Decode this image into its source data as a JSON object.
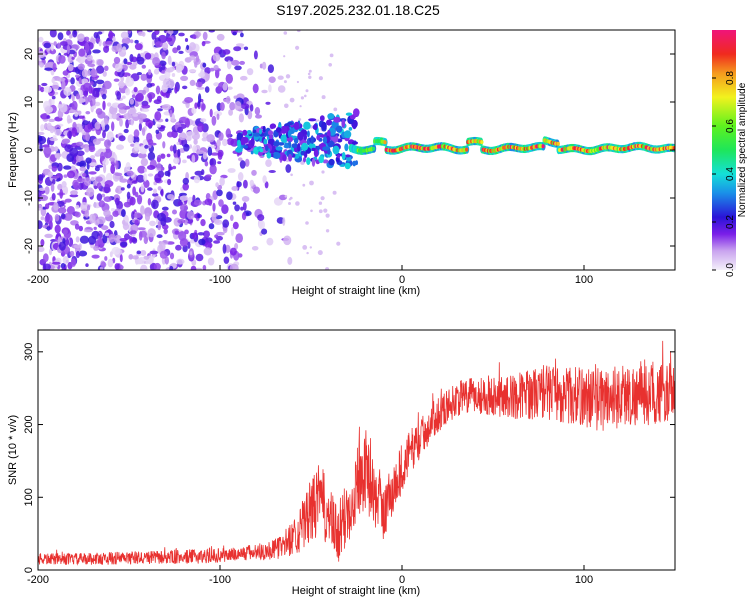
{
  "title": "S197.2025.232.01.18.C25",
  "chart_data": [
    {
      "type": "heatmap",
      "name": "spectrogram",
      "xlabel": "Height of straight line (km)",
      "ylabel": "Frequency (Hz)",
      "xlim": [
        -200,
        150
      ],
      "ylim": [
        -25,
        25
      ],
      "x_ticks": [
        -200,
        -100,
        0,
        100
      ],
      "x_tick_labels": [
        "-200",
        "-100",
        "0",
        "100"
      ],
      "y_ticks": [
        -20,
        -10,
        0,
        10,
        20
      ],
      "y_tick_labels": [
        "-20",
        "-10",
        "0",
        "10",
        "20"
      ],
      "description_series": [
        {
          "name": "noise scatter region",
          "x_range": [
            -200,
            -60
          ],
          "y_range": [
            -25,
            25
          ],
          "amplitude_range": [
            0.0,
            0.15
          ]
        },
        {
          "name": "transition band",
          "x_range": [
            -90,
            -25
          ],
          "y_range": [
            -5,
            5
          ],
          "amplitude_range": [
            0.1,
            0.35
          ]
        },
        {
          "name": "signal line",
          "x_range": [
            -25,
            150
          ],
          "y_center": 0,
          "amplitude_range": [
            0.4,
            1.0
          ]
        }
      ],
      "colorbar": {
        "label": "Normalized spectral amplitude",
        "range": [
          0.0,
          1.0
        ],
        "ticks": [
          0.0,
          0.2,
          0.4,
          0.6,
          0.8
        ],
        "tick_labels": [
          "0.0",
          "0.2",
          "0.4",
          "0.6",
          "0.8"
        ]
      }
    },
    {
      "type": "line",
      "name": "snr",
      "xlabel": "Height of straight line (km)",
      "ylabel": "SNR (10 * v/v)",
      "xlim": [
        -200,
        150
      ],
      "ylim": [
        0,
        330
      ],
      "x_ticks": [
        -200,
        -100,
        0,
        100
      ],
      "x_tick_labels": [
        "-200",
        "-100",
        "0",
        "100"
      ],
      "y_ticks": [
        0,
        100,
        200,
        300
      ],
      "y_tick_labels": [
        "0",
        "100",
        "200",
        "300"
      ],
      "color": "#e8312f",
      "series": [
        {
          "name": "SNR",
          "x": [
            -200,
            -180,
            -160,
            -140,
            -120,
            -100,
            -90,
            -80,
            -70,
            -65,
            -60,
            -55,
            -50,
            -45,
            -40,
            -35,
            -30,
            -25,
            -20,
            -15,
            -10,
            -5,
            0,
            5,
            10,
            15,
            20,
            25,
            30,
            40,
            50,
            60,
            70,
            80,
            90,
            100,
            110,
            120,
            130,
            140,
            150
          ],
          "y": [
            15,
            15,
            16,
            17,
            18,
            20,
            22,
            25,
            28,
            35,
            45,
            60,
            80,
            100,
            70,
            45,
            80,
            120,
            140,
            100,
            80,
            110,
            140,
            165,
            180,
            200,
            215,
            225,
            235,
            240,
            240,
            238,
            242,
            245,
            240,
            238,
            235,
            240,
            240,
            242,
            245
          ],
          "noise_amplitude": [
            8,
            8,
            9,
            9,
            10,
            10,
            10,
            12,
            14,
            18,
            25,
            35,
            45,
            50,
            45,
            40,
            50,
            55,
            55,
            45,
            40,
            40,
            35,
            30,
            28,
            26,
            25,
            24,
            24,
            26,
            28,
            30,
            35,
            38,
            40,
            42,
            45,
            45,
            42,
            42,
            40
          ]
        }
      ]
    }
  ]
}
